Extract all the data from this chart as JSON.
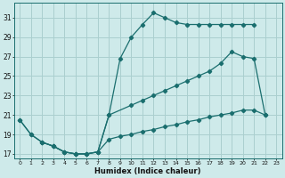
{
  "xlabel": "Humidex (Indice chaleur)",
  "bg_color": "#ceeaea",
  "grid_color": "#aacfcf",
  "line_color": "#1a6e6e",
  "xlim": [
    -0.5,
    23.5
  ],
  "ylim": [
    16.5,
    32.5
  ],
  "yticks": [
    17,
    19,
    21,
    23,
    25,
    27,
    29,
    31
  ],
  "xticks": [
    0,
    1,
    2,
    3,
    4,
    5,
    6,
    7,
    8,
    9,
    10,
    11,
    12,
    13,
    14,
    15,
    16,
    17,
    18,
    19,
    20,
    21,
    22,
    23
  ],
  "s1x": [
    0,
    1,
    2,
    3,
    4,
    5,
    6,
    7,
    8,
    9,
    10,
    11,
    12,
    13,
    14,
    15,
    16,
    17,
    18,
    19,
    20,
    21
  ],
  "s1y": [
    20.5,
    19.0,
    18.2,
    17.8,
    17.2,
    17.0,
    17.0,
    17.2,
    21.0,
    26.8,
    29.0,
    30.3,
    31.5,
    31.0,
    30.5,
    30.3,
    30.3,
    30.3,
    30.3,
    30.3,
    30.3,
    30.3
  ],
  "s2x": [
    0,
    1,
    2,
    3,
    4,
    5,
    6,
    7,
    8,
    10,
    11,
    12,
    13,
    14,
    15,
    16,
    17,
    18,
    19,
    20,
    21,
    22
  ],
  "s2y": [
    20.5,
    19.0,
    18.2,
    17.8,
    17.2,
    17.0,
    17.0,
    17.2,
    21.0,
    22.0,
    22.5,
    23.0,
    23.5,
    24.0,
    24.5,
    25.0,
    25.5,
    26.3,
    27.5,
    27.0,
    26.8,
    21.0
  ],
  "s3x": [
    2,
    3,
    4,
    5,
    6,
    7,
    8,
    9,
    10,
    11,
    12,
    13,
    14,
    15,
    16,
    17,
    18,
    19,
    20,
    21,
    22
  ],
  "s3y": [
    18.2,
    17.8,
    17.2,
    17.0,
    17.0,
    17.2,
    18.5,
    18.8,
    19.0,
    19.3,
    19.5,
    19.8,
    20.0,
    20.3,
    20.5,
    20.8,
    21.0,
    21.2,
    21.5,
    21.5,
    21.0
  ]
}
